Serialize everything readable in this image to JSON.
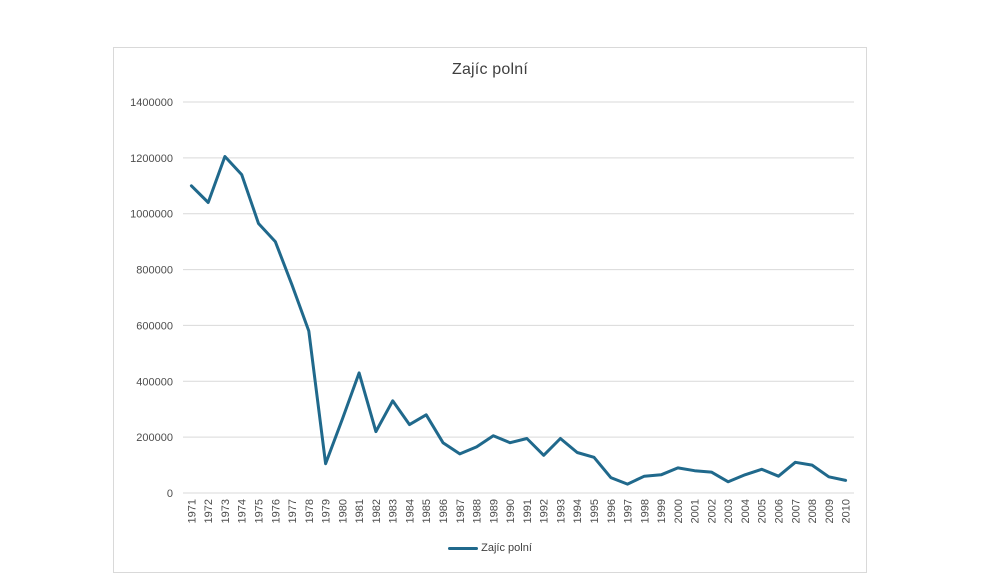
{
  "chart": {
    "title": "Zajíc polní",
    "legend": {
      "label": "Zajíc polní"
    }
  },
  "chart_data": {
    "type": "line",
    "title": "Zajíc polní",
    "categories": [
      "1971",
      "1972",
      "1973",
      "1974",
      "1975",
      "1976",
      "1977",
      "1978",
      "1979",
      "1980",
      "1981",
      "1982",
      "1983",
      "1984",
      "1985",
      "1986",
      "1987",
      "1988",
      "1989",
      "1990",
      "1991",
      "1992",
      "1993",
      "1994",
      "1995",
      "1996",
      "1997",
      "1998",
      "1999",
      "2000",
      "2001",
      "2002",
      "2003",
      "2004",
      "2005",
      "2006",
      "2007",
      "2008",
      "2009",
      "2010"
    ],
    "series": [
      {
        "name": "Zajíc polní",
        "values": [
          1100000,
          1040000,
          1205000,
          1140000,
          965000,
          900000,
          745000,
          580000,
          105000,
          265000,
          430000,
          220000,
          330000,
          245000,
          280000,
          180000,
          140000,
          165000,
          205000,
          180000,
          195000,
          135000,
          195000,
          145000,
          128000,
          55000,
          32000,
          60000,
          65000,
          90000,
          80000,
          75000,
          40000,
          65000,
          85000,
          60000,
          110000,
          100000,
          58000,
          45000
        ]
      }
    ],
    "xlabel": "",
    "ylabel": "",
    "ylim": [
      0,
      1400000
    ],
    "ytick_interval": 200000,
    "ytick_labels": [
      "0",
      "200000",
      "400000",
      "600000",
      "800000",
      "1000000",
      "1200000",
      "1400000"
    ],
    "grid": "horizontal",
    "legend_position": "bottom",
    "colors": {
      "line": "#20698C",
      "grid": "#d9d9d9",
      "axis_label": "#4d4d4d",
      "title": "#3f3f3f",
      "card_border": "#d9d9d9",
      "background": "#ffffff"
    }
  }
}
